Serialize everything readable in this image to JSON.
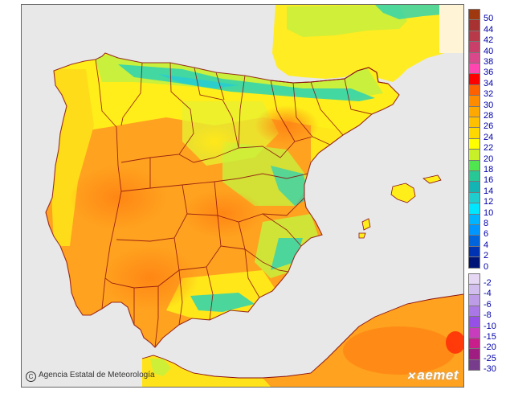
{
  "map": {
    "attribution": "Agencia Estatal de Meteorología",
    "copyright_symbol": "C",
    "logo_text": "aemet",
    "logo_mark": "✕",
    "colors": {
      "sea": "#e8e8e8",
      "land_base": "#ffa21f",
      "warm": "#ffc81e",
      "yellow": "#ffee1a",
      "greenish": "#c8f03c",
      "teal": "#2cd2b4",
      "cyan": "#1ec8e6",
      "hot": "#ff8a14",
      "france": "#ffee22",
      "borders": "#8b0f0f"
    },
    "regions": [
      "Iberian Peninsula",
      "France",
      "Balearic Islands",
      "North Africa"
    ]
  },
  "legend": {
    "items": [
      {
        "label": "50",
        "color": "#a0380f"
      },
      {
        "label": "44",
        "color": "#a83232"
      },
      {
        "label": "42",
        "color": "#b83a4a"
      },
      {
        "label": "40",
        "color": "#c8406a"
      },
      {
        "label": "38",
        "color": "#d8488a"
      },
      {
        "label": "36",
        "color": "#ff46b0"
      },
      {
        "label": "34",
        "color": "#ff0000"
      },
      {
        "label": "32",
        "color": "#ff6000"
      },
      {
        "label": "30",
        "color": "#ff8c00"
      },
      {
        "label": "28",
        "color": "#ffa800"
      },
      {
        "label": "26",
        "color": "#ffc000"
      },
      {
        "label": "24",
        "color": "#ffd800"
      },
      {
        "label": "22",
        "color": "#ffff00"
      },
      {
        "label": "20",
        "color": "#c8f028"
      },
      {
        "label": "18",
        "color": "#50e650"
      },
      {
        "label": "16",
        "color": "#28c896"
      },
      {
        "label": "14",
        "color": "#14b4b4"
      },
      {
        "label": "12",
        "color": "#1ecdcd"
      },
      {
        "label": "10",
        "color": "#00e6ff"
      },
      {
        "label": "8",
        "color": "#00b4ff"
      },
      {
        "label": "6",
        "color": "#0096ff"
      },
      {
        "label": "4",
        "color": "#0064dc"
      },
      {
        "label": "2",
        "color": "#0032b4"
      },
      {
        "label": "0",
        "color": "#001478"
      },
      {
        "label": "-2",
        "color": "#e6d7f5"
      },
      {
        "label": "-4",
        "color": "#d2beee"
      },
      {
        "label": "-6",
        "color": "#be9be6"
      },
      {
        "label": "-8",
        "color": "#aa78e6"
      },
      {
        "label": "-10",
        "color": "#9650e6"
      },
      {
        "label": "-15",
        "color": "#c83cbe"
      },
      {
        "label": "-20",
        "color": "#c81e8c"
      },
      {
        "label": "-25",
        "color": "#a01e82"
      },
      {
        "label": "-30",
        "color": "#783c8c"
      }
    ]
  }
}
